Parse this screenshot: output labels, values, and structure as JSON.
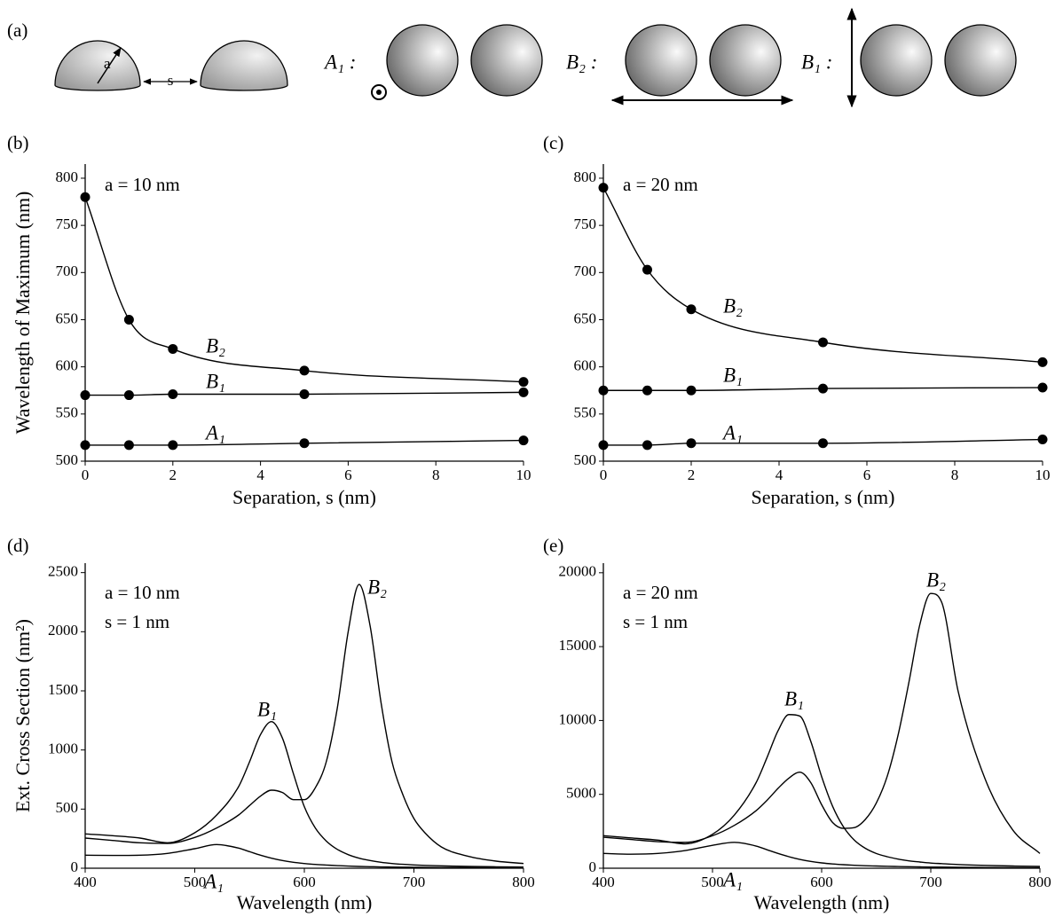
{
  "diagram": {
    "panel": "(a)",
    "radius": "a",
    "gap": "s",
    "modes": [
      "A₁ :",
      "B₂ :",
      "B₁ :"
    ]
  },
  "chart_data": [
    {
      "type": "line",
      "panel": "(b)",
      "markers": true,
      "annotations": [
        "a = 10 nm"
      ],
      "xlabel": "Separation, s (nm)",
      "ylabel": "Wavelength of Maximum (nm)",
      "x": [
        0,
        1,
        2,
        5,
        10
      ],
      "xlim": [
        0,
        10
      ],
      "xticks": [
        0,
        2,
        4,
        6,
        8,
        10
      ],
      "ylim": [
        500,
        815
      ],
      "yticks": [
        500,
        550,
        600,
        650,
        700,
        750,
        800
      ],
      "series": [
        {
          "name": "B₂",
          "color": "#000000",
          "values": [
            780,
            650,
            619,
            596,
            584
          ]
        },
        {
          "name": "B₁",
          "color": "#000000",
          "values": [
            570,
            570,
            571,
            571,
            573
          ]
        },
        {
          "name": "A₁",
          "color": "#000000",
          "values": [
            517,
            517,
            517,
            519,
            522
          ]
        }
      ]
    },
    {
      "type": "line",
      "panel": "(c)",
      "markers": true,
      "annotations": [
        "a = 20 nm"
      ],
      "xlabel": "Separation, s (nm)",
      "x": [
        0,
        1,
        2,
        5,
        10
      ],
      "xlim": [
        0,
        10
      ],
      "xticks": [
        0,
        2,
        4,
        6,
        8,
        10
      ],
      "ylim": [
        500,
        815
      ],
      "yticks": [
        500,
        550,
        600,
        650,
        700,
        750,
        800
      ],
      "series": [
        {
          "name": "B₂",
          "color": "#000000",
          "values": [
            790,
            703,
            661,
            626,
            605
          ]
        },
        {
          "name": "B₁",
          "color": "#000000",
          "values": [
            575,
            575,
            575,
            577,
            578
          ]
        },
        {
          "name": "A₁",
          "color": "#000000",
          "values": [
            517,
            517,
            519,
            519,
            523
          ]
        }
      ]
    },
    {
      "type": "line",
      "panel": "(d)",
      "markers": false,
      "annotations": [
        "a = 10 nm",
        "s = 1 nm"
      ],
      "xlabel": "Wavelength (nm)",
      "ylabel": "Ext. Cross Section (nm²)",
      "x": [
        400,
        425,
        450,
        475,
        500,
        520,
        540,
        550,
        560,
        570,
        580,
        590,
        600,
        610,
        620,
        630,
        640,
        650,
        660,
        670,
        680,
        690,
        700,
        710,
        725,
        750,
        775,
        800
      ],
      "xlim": [
        400,
        800
      ],
      "xticks": [
        400,
        500,
        600,
        700,
        800
      ],
      "ylim": [
        0,
        2580
      ],
      "yticks": [
        0,
        500,
        1000,
        1500,
        2000,
        2500
      ],
      "series": [
        {
          "name": "A₁",
          "color": "#000000",
          "values": [
            110,
            108,
            110,
            125,
            165,
            200,
            170,
            140,
            110,
            85,
            65,
            50,
            40,
            32,
            27,
            22,
            18,
            15,
            13,
            11,
            10,
            9,
            8,
            7,
            6,
            5,
            4,
            3
          ]
        },
        {
          "name": "B₁",
          "color": "#000000",
          "values": [
            290,
            275,
            255,
            215,
            300,
            450,
            690,
            900,
            1130,
            1240,
            1100,
            800,
            520,
            340,
            230,
            160,
            115,
            85,
            65,
            50,
            40,
            33,
            28,
            24,
            20,
            15,
            12,
            10
          ]
        },
        {
          "name": "B₂",
          "color": "#000000",
          "values": [
            255,
            235,
            215,
            210,
            260,
            340,
            450,
            530,
            610,
            660,
            640,
            580,
            580,
            680,
            900,
            1350,
            2000,
            2400,
            2050,
            1400,
            900,
            620,
            420,
            300,
            180,
            100,
            60,
            40
          ]
        }
      ]
    },
    {
      "type": "line",
      "panel": "(e)",
      "markers": false,
      "annotations": [
        "a = 20 nm",
        "s = 1 nm"
      ],
      "xlabel": "Wavelength (nm)",
      "x": [
        400,
        425,
        450,
        475,
        500,
        520,
        540,
        550,
        560,
        570,
        580,
        590,
        600,
        610,
        620,
        630,
        640,
        650,
        660,
        670,
        680,
        690,
        700,
        710,
        725,
        750,
        775,
        800
      ],
      "xlim": [
        400,
        800
      ],
      "xticks": [
        400,
        500,
        600,
        700,
        800
      ],
      "ylim": [
        0,
        20650
      ],
      "yticks": [
        0,
        5000,
        10000,
        15000,
        20000
      ],
      "series": [
        {
          "name": "A₁",
          "color": "#000000",
          "values": [
            1000,
            950,
            1000,
            1200,
            1550,
            1750,
            1500,
            1250,
            1000,
            780,
            600,
            460,
            360,
            290,
            240,
            200,
            170,
            150,
            130,
            115,
            100,
            90,
            80,
            75,
            60,
            50,
            40,
            35
          ]
        },
        {
          "name": "B₁",
          "color": "#000000",
          "values": [
            2200,
            2050,
            1900,
            1650,
            2300,
            3600,
            5800,
            7500,
            9300,
            10400,
            10300,
            8600,
            6200,
            4200,
            2800,
            1900,
            1350,
            1000,
            780,
            620,
            500,
            420,
            350,
            310,
            250,
            190,
            150,
            120
          ]
        },
        {
          "name": "B₂",
          "color": "#000000",
          "values": [
            2100,
            1950,
            1800,
            1750,
            2200,
            2900,
            3900,
            4600,
            5400,
            6100,
            6500,
            5800,
            4300,
            3100,
            2700,
            2750,
            3300,
            4400,
            6200,
            9000,
            12600,
            16500,
            18600,
            18000,
            12000,
            6000,
            2600,
            1000
          ]
        }
      ]
    }
  ]
}
